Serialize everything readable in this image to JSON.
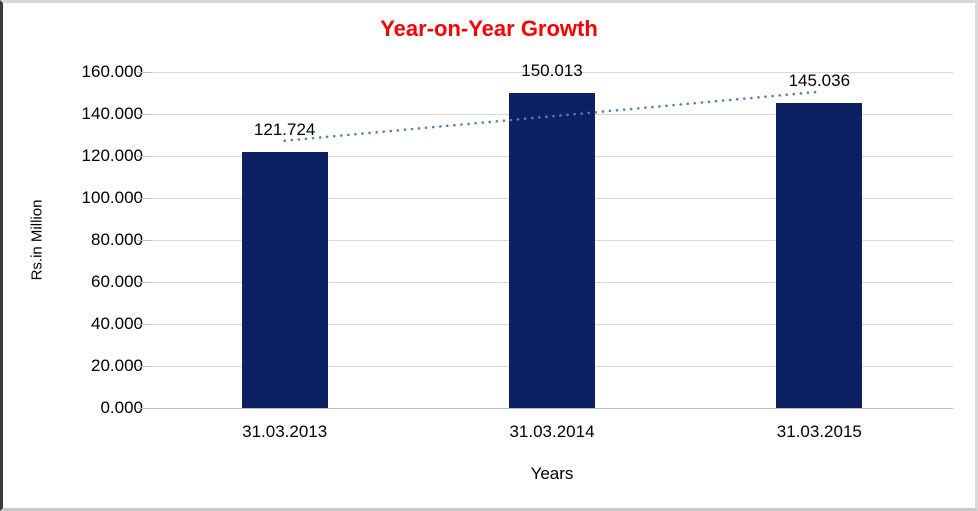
{
  "chart_data": {
    "type": "bar",
    "title": "Year-on-Year Growth",
    "categories": [
      "31.03.2013",
      "31.03.2014",
      "31.03.2015"
    ],
    "values": [
      121.724,
      150.013,
      145.036
    ],
    "data_labels": [
      "121.724",
      "150.013",
      "145.036"
    ],
    "xlabel": "Years",
    "ylabel": "Rs.in Million",
    "ylim": [
      0,
      160
    ],
    "ytick_step": 20,
    "ytick_labels": [
      "0.000",
      "20.000",
      "40.000",
      "60.000",
      "80.000",
      "100.000",
      "120.000",
      "140.000",
      "160.000"
    ],
    "grid": true,
    "legend": "none",
    "trendline": {
      "type": "linear",
      "style": "dotted"
    },
    "colors": {
      "bar": "#0b2161",
      "title": "#ff0000",
      "gridline": "#d9d9d9",
      "axis": "#bfbfbf",
      "trendline": "#4f81bd",
      "text": "#000000"
    }
  }
}
